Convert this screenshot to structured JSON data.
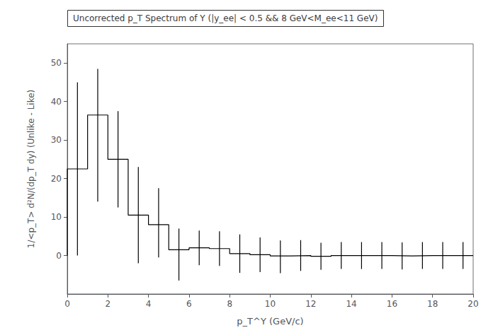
{
  "chart_data": {
    "type": "histogram",
    "title": "Uncorrected p_T Spectrum of Υ (|y_ee| < 0.5 && 8 GeV<M_ee<11 GeV)",
    "xlabel": "p_T^Υ (GeV/c)",
    "ylabel": "1/<p_T> d²N/(dp_T dy) (Unlike - Like)",
    "bins": [
      0,
      1,
      2,
      3,
      4,
      5,
      6,
      7,
      8,
      9,
      10,
      11,
      12,
      13,
      14,
      15,
      16,
      17,
      18,
      19,
      20
    ],
    "values": [
      22.5,
      36.5,
      25.0,
      10.5,
      8.0,
      1.5,
      2.0,
      1.8,
      0.5,
      0.2,
      -0.1,
      0.0,
      -0.2,
      0.0,
      0.0,
      0.0,
      -0.1,
      0.0,
      0.0,
      0.0
    ],
    "error_bars": {
      "x": [
        0.5,
        1.5,
        2.5,
        3.5,
        4.5,
        5.5,
        6.5,
        7.5,
        8.5,
        9.5,
        10.5,
        11.5,
        12.5,
        13.5,
        14.5,
        15.5,
        16.5,
        17.5,
        18.5,
        19.5
      ],
      "plus": [
        22.5,
        12.0,
        12.5,
        12.5,
        9.5,
        5.5,
        4.5,
        4.5,
        5.0,
        4.5,
        4.0,
        4.0,
        3.5,
        3.5,
        3.5,
        3.5,
        3.5,
        3.5,
        3.5,
        3.5
      ],
      "minus": [
        22.5,
        22.5,
        12.5,
        12.5,
        8.5,
        8.0,
        4.5,
        4.5,
        5.0,
        4.5,
        4.5,
        4.0,
        3.5,
        3.5,
        3.5,
        3.5,
        3.5,
        3.5,
        3.5,
        3.5
      ]
    },
    "color": "#000000",
    "xlim": [
      0,
      20
    ],
    "ylim": [
      -10,
      55
    ],
    "xticks": [
      0,
      2,
      4,
      6,
      8,
      10,
      12,
      14,
      16,
      18,
      20
    ],
    "yticks": [
      0,
      10,
      20,
      30,
      40,
      50
    ],
    "grid": false
  }
}
